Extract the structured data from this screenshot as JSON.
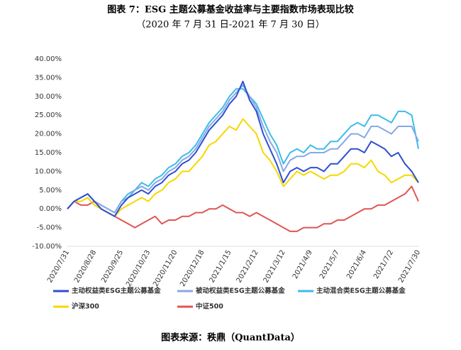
{
  "chart_data": {
    "type": "line",
    "title": "图表 7：ESG 主题公募基金收益率与主要指数市场表现比较",
    "subtitle": "（2020 年 7 月 31 日-2021 年 7 月 30 日）",
    "source": "图表来源：秩鼎（QuantData）",
    "categories": [
      "2020/7/31",
      null,
      null,
      null,
      "2020/8/28",
      null,
      null,
      null,
      "2020/9/25",
      null,
      null,
      null,
      "2020/10/23",
      null,
      null,
      null,
      "2020/11/20",
      null,
      null,
      null,
      "2020/12/18",
      null,
      null,
      null,
      "2021/1/15",
      null,
      null,
      null,
      "2021/2/12",
      null,
      null,
      null,
      "2021/3/12",
      null,
      null,
      null,
      "2021/4/9",
      null,
      null,
      null,
      "2021/5/7",
      null,
      null,
      null,
      "2021/6/4",
      null,
      null,
      null,
      "2021/7/2",
      null,
      null,
      null,
      "2021/7/30"
    ],
    "ylim": [
      -10,
      40
    ],
    "yticks": [
      {
        "value": -10,
        "label": "-10.00%"
      },
      {
        "value": -5,
        "label": "-5.00%"
      },
      {
        "value": 0,
        "label": "0.00%"
      },
      {
        "value": 5,
        "label": "5.00%"
      },
      {
        "value": 10,
        "label": "10.00%"
      },
      {
        "value": 15,
        "label": "15.00%"
      },
      {
        "value": 20,
        "label": "20.00%"
      },
      {
        "value": 25,
        "label": "25.00%"
      },
      {
        "value": 30,
        "label": "30.00%"
      },
      {
        "value": 35,
        "label": "35.00%"
      },
      {
        "value": 40,
        "label": "40.00%"
      }
    ],
    "series": [
      {
        "name": "主动权益类ESG主题公募基金",
        "color": "#2f4fd0",
        "values": [
          0,
          2,
          3,
          4,
          2,
          0,
          -1,
          -2,
          1,
          3,
          4,
          5,
          4,
          6,
          7,
          9,
          10,
          12,
          13,
          15,
          18,
          21,
          23,
          25,
          28,
          30,
          34,
          29,
          26,
          20,
          16,
          12,
          7,
          10,
          11,
          10,
          11,
          11,
          10,
          12,
          12,
          14,
          16,
          16,
          15,
          18,
          17,
          16,
          14,
          15,
          12,
          10,
          7
        ]
      },
      {
        "name": "被动权益类ESG主题公募基金",
        "color": "#86a8e6",
        "values": [
          0,
          2,
          3,
          4,
          2,
          1,
          0,
          -1,
          2,
          3,
          5,
          6,
          5,
          7,
          8,
          10,
          11,
          13,
          14,
          16,
          19,
          22,
          24,
          26,
          29,
          31,
          33,
          30,
          27,
          22,
          18,
          15,
          10,
          13,
          14,
          14,
          15,
          15,
          15,
          16,
          16,
          18,
          20,
          20,
          19,
          22,
          22,
          21,
          20,
          22,
          22,
          22,
          18
        ]
      },
      {
        "name": "主动混合类ESG主题公募基金",
        "color": "#3cbde8",
        "values": [
          0,
          2,
          3,
          4,
          2,
          1,
          0,
          -1,
          2,
          4,
          5,
          7,
          6,
          8,
          9,
          11,
          12,
          14,
          15,
          17,
          20,
          23,
          25,
          27,
          30,
          32,
          32,
          30,
          28,
          24,
          20,
          17,
          12,
          15,
          16,
          15,
          17,
          16,
          16,
          18,
          18,
          20,
          22,
          23,
          22,
          25,
          25,
          24,
          23,
          26,
          26,
          25,
          16
        ]
      },
      {
        "name": "沪深300",
        "color": "#f5d800",
        "values": [
          0,
          2,
          2,
          3,
          1,
          0,
          -1,
          -2,
          0,
          1,
          2,
          3,
          2,
          4,
          5,
          7,
          8,
          10,
          10,
          12,
          14,
          17,
          18,
          20,
          22,
          21,
          24,
          22,
          20,
          15,
          13,
          10,
          6,
          8,
          10,
          9,
          10,
          9,
          8,
          9,
          9,
          10,
          12,
          12,
          11,
          13,
          10,
          9,
          7,
          8,
          9,
          9,
          7
        ]
      },
      {
        "name": "中证500",
        "color": "#e05555",
        "values": [
          0,
          2,
          1,
          1,
          2,
          0,
          -1,
          -2,
          -3,
          -4,
          -5,
          -4,
          -3,
          -2,
          -4,
          -3,
          -3,
          -2,
          -2,
          -1,
          -1,
          0,
          0,
          1,
          0,
          -1,
          -1,
          -2,
          -1,
          -2,
          -3,
          -4,
          -5,
          -6,
          -6,
          -5,
          -5,
          -5,
          -4,
          -4,
          -3,
          -3,
          -2,
          -1,
          0,
          0,
          1,
          1,
          2,
          3,
          4,
          6,
          2
        ]
      }
    ]
  }
}
